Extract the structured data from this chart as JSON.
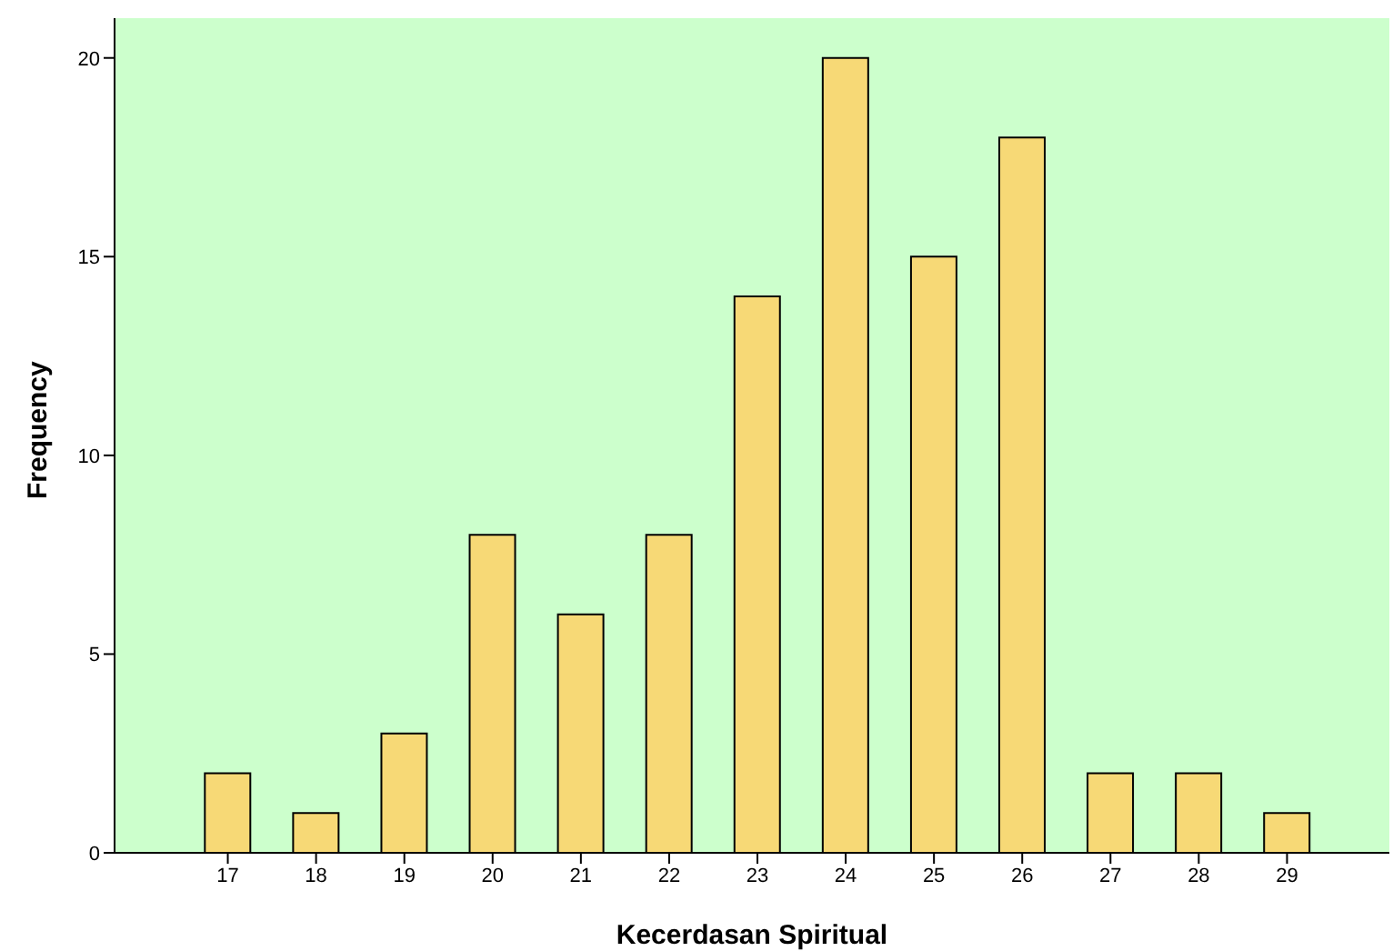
{
  "chart_data": {
    "type": "bar",
    "xlabel": "Kecerdasan Spiritual",
    "ylabel": "Frequency",
    "categories": [
      "17",
      "18",
      "19",
      "20",
      "21",
      "22",
      "23",
      "24",
      "25",
      "26",
      "27",
      "28",
      "29"
    ],
    "values": [
      2,
      1,
      3,
      8,
      6,
      8,
      14,
      20,
      15,
      18,
      2,
      2,
      1
    ],
    "color": "#f7d976",
    "ylim": [
      0,
      21
    ],
    "yticks": [
      0,
      5,
      10,
      15,
      20
    ],
    "grid": false
  }
}
